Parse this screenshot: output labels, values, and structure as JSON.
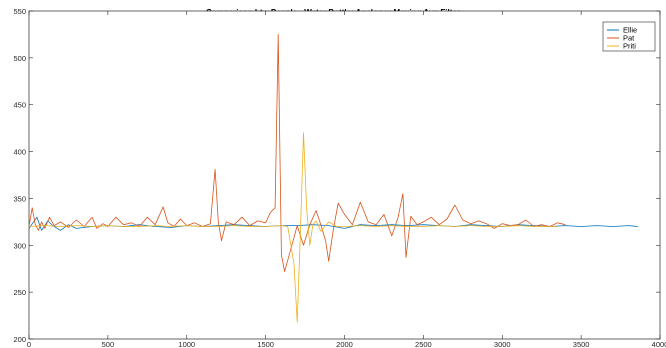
{
  "chart_data": {
    "type": "line",
    "title": "Comparison btw People - Water Bottle: Analog w Moving Avg Filter",
    "xlabel": "",
    "ylabel": "",
    "xlim": [
      0,
      4000
    ],
    "ylim": [
      200,
      550
    ],
    "x_ticks": [
      0,
      500,
      1000,
      1500,
      2000,
      2500,
      3000,
      3500,
      4000
    ],
    "y_ticks": [
      200,
      250,
      300,
      350,
      400,
      450,
      500,
      550
    ],
    "grid": false,
    "legend_position": "top-right",
    "series": [
      {
        "name": "Ellie",
        "color": "#0072BD",
        "points": [
          [
            0,
            318
          ],
          [
            50,
            330
          ],
          [
            80,
            316
          ],
          [
            120,
            326
          ],
          [
            150,
            321
          ],
          [
            200,
            316
          ],
          [
            250,
            322
          ],
          [
            300,
            318
          ],
          [
            400,
            320
          ],
          [
            500,
            321
          ],
          [
            600,
            320
          ],
          [
            700,
            322
          ],
          [
            800,
            320
          ],
          [
            900,
            319
          ],
          [
            1000,
            321
          ],
          [
            1100,
            320
          ],
          [
            1200,
            321
          ],
          [
            1300,
            322
          ],
          [
            1400,
            321
          ],
          [
            1500,
            320
          ],
          [
            1600,
            321
          ],
          [
            1700,
            321
          ],
          [
            1800,
            322
          ],
          [
            1900,
            321
          ],
          [
            2000,
            318
          ],
          [
            2100,
            322
          ],
          [
            2200,
            321
          ],
          [
            2300,
            322
          ],
          [
            2400,
            321
          ],
          [
            2500,
            322
          ],
          [
            2600,
            321
          ],
          [
            2700,
            320
          ],
          [
            2800,
            322
          ],
          [
            2900,
            321
          ],
          [
            3000,
            320
          ],
          [
            3100,
            322
          ],
          [
            3200,
            321
          ],
          [
            3300,
            320
          ],
          [
            3400,
            321
          ],
          [
            3500,
            320
          ],
          [
            3600,
            321
          ],
          [
            3700,
            320
          ],
          [
            3800,
            321
          ],
          [
            3860,
            320
          ]
        ]
      },
      {
        "name": "Pat",
        "color": "#D95319",
        "points": [
          [
            0,
            320
          ],
          [
            20,
            340
          ],
          [
            40,
            322
          ],
          [
            60,
            316
          ],
          [
            80,
            325
          ],
          [
            100,
            318
          ],
          [
            130,
            330
          ],
          [
            160,
            321
          ],
          [
            200,
            325
          ],
          [
            250,
            319
          ],
          [
            300,
            327
          ],
          [
            350,
            320
          ],
          [
            400,
            330
          ],
          [
            430,
            318
          ],
          [
            470,
            323
          ],
          [
            500,
            320
          ],
          [
            550,
            330
          ],
          [
            600,
            322
          ],
          [
            650,
            324
          ],
          [
            700,
            320
          ],
          [
            750,
            330
          ],
          [
            800,
            322
          ],
          [
            850,
            341
          ],
          [
            880,
            324
          ],
          [
            920,
            320
          ],
          [
            960,
            328
          ],
          [
            1000,
            321
          ],
          [
            1050,
            324
          ],
          [
            1100,
            320
          ],
          [
            1150,
            323
          ],
          [
            1180,
            381
          ],
          [
            1200,
            325
          ],
          [
            1220,
            305
          ],
          [
            1250,
            325
          ],
          [
            1300,
            322
          ],
          [
            1350,
            330
          ],
          [
            1400,
            321
          ],
          [
            1450,
            326
          ],
          [
            1500,
            324
          ],
          [
            1530,
            335
          ],
          [
            1560,
            340
          ],
          [
            1580,
            525
          ],
          [
            1600,
            290
          ],
          [
            1620,
            272
          ],
          [
            1650,
            290
          ],
          [
            1700,
            321
          ],
          [
            1740,
            300
          ],
          [
            1780,
            322
          ],
          [
            1820,
            337
          ],
          [
            1850,
            322
          ],
          [
            1880,
            305
          ],
          [
            1900,
            283
          ],
          [
            1930,
            318
          ],
          [
            1960,
            345
          ],
          [
            2000,
            333
          ],
          [
            2050,
            322
          ],
          [
            2100,
            346
          ],
          [
            2150,
            325
          ],
          [
            2200,
            322
          ],
          [
            2250,
            333
          ],
          [
            2300,
            310
          ],
          [
            2340,
            330
          ],
          [
            2370,
            355
          ],
          [
            2390,
            287
          ],
          [
            2420,
            331
          ],
          [
            2460,
            322
          ],
          [
            2500,
            325
          ],
          [
            2550,
            330
          ],
          [
            2600,
            322
          ],
          [
            2650,
            328
          ],
          [
            2700,
            343
          ],
          [
            2750,
            327
          ],
          [
            2800,
            323
          ],
          [
            2850,
            326
          ],
          [
            2900,
            323
          ],
          [
            2950,
            318
          ],
          [
            3000,
            323
          ],
          [
            3050,
            321
          ],
          [
            3100,
            322
          ],
          [
            3150,
            327
          ],
          [
            3200,
            320
          ],
          [
            3250,
            322
          ],
          [
            3300,
            320
          ],
          [
            3350,
            324
          ],
          [
            3400,
            322
          ]
        ]
      },
      {
        "name": "Priti",
        "color": "#EDB120",
        "points": [
          [
            0,
            320
          ],
          [
            100,
            321
          ],
          [
            200,
            320
          ],
          [
            300,
            321
          ],
          [
            400,
            320
          ],
          [
            500,
            321
          ],
          [
            600,
            320
          ],
          [
            700,
            320
          ],
          [
            800,
            321
          ],
          [
            900,
            320
          ],
          [
            1000,
            321
          ],
          [
            1100,
            320
          ],
          [
            1200,
            320
          ],
          [
            1300,
            321
          ],
          [
            1400,
            320
          ],
          [
            1500,
            320
          ],
          [
            1600,
            321
          ],
          [
            1640,
            320
          ],
          [
            1660,
            300
          ],
          [
            1680,
            280
          ],
          [
            1700,
            218
          ],
          [
            1720,
            310
          ],
          [
            1740,
            420
          ],
          [
            1760,
            340
          ],
          [
            1780,
            300
          ],
          [
            1800,
            322
          ],
          [
            1820,
            326
          ],
          [
            1850,
            315
          ],
          [
            1900,
            325
          ],
          [
            1950,
            320
          ],
          [
            2000,
            320
          ],
          [
            2100,
            321
          ],
          [
            2200,
            320
          ],
          [
            2300,
            321
          ],
          [
            2400,
            320
          ],
          [
            2500,
            320
          ],
          [
            2600,
            321
          ],
          [
            2700,
            320
          ],
          [
            2800,
            321
          ],
          [
            2900,
            320
          ],
          [
            3000,
            320
          ],
          [
            3100,
            321
          ],
          [
            3200,
            320
          ],
          [
            3300,
            320
          ],
          [
            3350,
            320
          ]
        ]
      }
    ]
  }
}
